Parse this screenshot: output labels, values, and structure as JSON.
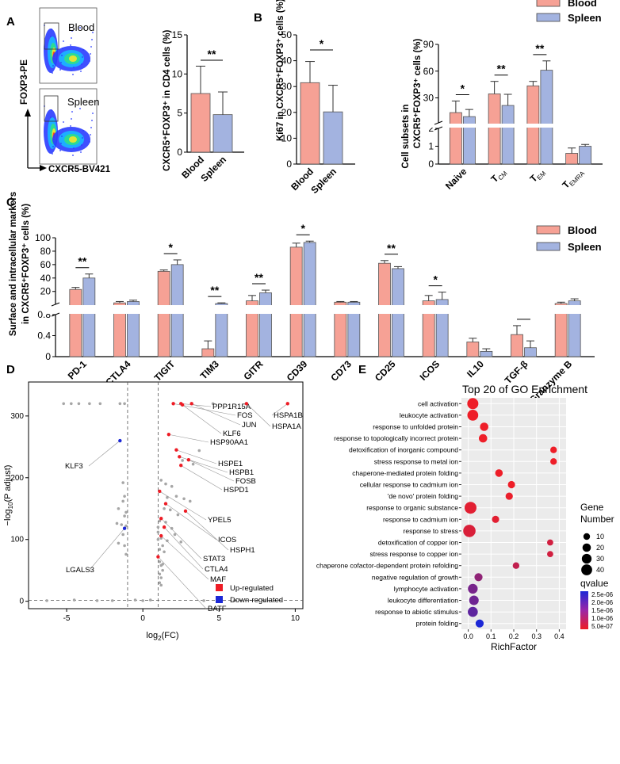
{
  "colors": {
    "blood": "#f6a195",
    "spleen": "#a3b3e0",
    "up": "#ee1c25",
    "down": "#1c28d6",
    "ns": "#a6a6a6"
  },
  "legend": {
    "blood": "Blood",
    "spleen": "Spleen"
  },
  "chart_data": [
    {
      "panel": "A",
      "type": "bar",
      "flow_labels": {
        "y": "FOXP3-PE",
        "x": "CXCR5-BV421",
        "top": "Blood",
        "bottom": "Spleen"
      },
      "categories": [
        "Blood",
        "Spleen"
      ],
      "values": [
        7.5,
        4.8
      ],
      "errors": [
        3.5,
        2.9
      ],
      "ylabel": "CXCR5⁺FOXP3⁺ in CD4 cells (%)",
      "ylim": [
        0,
        15
      ],
      "yticks": [
        "0",
        "5",
        "10",
        "15"
      ],
      "significance": "**"
    },
    {
      "panel": "B1",
      "type": "bar",
      "categories": [
        "Blood",
        "Spleen"
      ],
      "values": [
        31.5,
        20.2
      ],
      "errors": [
        8.2,
        10.3
      ],
      "ylabel": "Ki67 in CXCR5⁺FOXP3⁺ cells (%)",
      "ylim": [
        0,
        50
      ],
      "yticks": [
        "0",
        "10",
        "20",
        "30",
        "40",
        "50"
      ],
      "significance": "*"
    },
    {
      "panel": "B2",
      "type": "bar",
      "ylabel_line1": "Cell subsets in",
      "ylabel_line2": "CXCR5⁺FOXP3⁺ cells (%)",
      "categories": [
        "Naive",
        "T_CM",
        "T_EM",
        "T_EMRA"
      ],
      "category_labels": [
        {
          "main": "Naive",
          "sub": ""
        },
        {
          "main": "T",
          "sub": "CM"
        },
        {
          "main": "T",
          "sub": "EM"
        },
        {
          "main": "T",
          "sub": "EMRA"
        }
      ],
      "series": [
        {
          "name": "Blood",
          "values": [
            13.5,
            34.5,
            43.5,
            0.6
          ],
          "errors": [
            13.0,
            14.0,
            5.0,
            0.3
          ]
        },
        {
          "name": "Spleen",
          "values": [
            9.0,
            21.5,
            61.0,
            1.0
          ],
          "errors": [
            8.0,
            12.5,
            10.5,
            0.1
          ]
        }
      ],
      "axis_break": {
        "lower": [
          0,
          2
        ],
        "upper": [
          2,
          90
        ]
      },
      "yticks_lower": [
        "0",
        "1",
        "2"
      ],
      "yticks_upper": [
        "30",
        "60",
        "90"
      ],
      "significance": [
        "*",
        "**",
        "**",
        ""
      ]
    },
    {
      "panel": "C",
      "type": "bar",
      "ylabel_line1": "Surface and intracellular markers",
      "ylabel_line2": "in CXCR5⁺FOXP3⁺ cells (%)",
      "categories": [
        "PD-1",
        "CTLA4",
        "TIGIT",
        "TIM3",
        "GITR",
        "CD39",
        "CD73",
        "CD25",
        "ICOS",
        "IL10",
        "TGF-β",
        "Granzyme B"
      ],
      "series": [
        {
          "name": "Blood",
          "values": [
            23,
            3,
            50,
            0.15,
            6,
            86,
            4,
            62,
            6,
            0.28,
            0.42,
            2
          ],
          "errors": [
            3,
            2,
            2,
            0.15,
            8,
            6,
            1,
            4,
            8,
            0.07,
            0.17,
            2
          ]
        },
        {
          "name": "Spleen",
          "values": [
            40,
            5,
            60,
            2,
            18,
            93,
            4,
            54,
            8,
            0.1,
            0.17,
            6
          ],
          "errors": [
            6,
            2,
            7,
            1,
            4,
            2,
            1,
            3,
            11,
            0.05,
            0.13,
            3
          ]
        }
      ],
      "axis_break": {
        "lower": [
          0,
          0.8
        ],
        "upper": [
          0.8,
          100
        ]
      },
      "yticks_lower": [
        "0",
        "0.4",
        "0.8"
      ],
      "yticks_upper": [
        "20",
        "40",
        "60",
        "80",
        "100"
      ],
      "significance": [
        "**",
        "",
        "*",
        "**",
        "**",
        "*",
        "",
        "**",
        "*",
        "",
        "**",
        ""
      ]
    },
    {
      "panel": "D",
      "type": "scatter",
      "xlabel_main": "log",
      "xlabel_sub": "2",
      "xlabel_rest": "(FC)",
      "ylabel_main": "−log",
      "ylabel_sub": "10",
      "ylabel_rest": "(P adjust)",
      "xlim": [
        -7.5,
        10.5
      ],
      "ylim": [
        -12,
        355
      ],
      "xticks": [
        "-5",
        "0",
        "5",
        "10"
      ],
      "yticks": [
        "0",
        "100",
        "200",
        "300"
      ],
      "legend": [
        "Up-regulated",
        "Down-regulated"
      ],
      "labeled_genes": [
        {
          "gene": "PPP1R15A",
          "x": 2.5,
          "y": 320,
          "reg": "up"
        },
        {
          "gene": "FOS",
          "x": 2.0,
          "y": 320,
          "reg": "up"
        },
        {
          "gene": "JUN",
          "x": 3.2,
          "y": 320,
          "reg": "up"
        },
        {
          "gene": "KLF6",
          "x": 2.6,
          "y": 318,
          "reg": "up"
        },
        {
          "gene": "HSPA1B",
          "x": 9.5,
          "y": 320,
          "reg": "up"
        },
        {
          "gene": "HSPA1A",
          "x": 6.8,
          "y": 320,
          "reg": "up"
        },
        {
          "gene": "HSP90AA1",
          "x": 1.7,
          "y": 270,
          "reg": "up"
        },
        {
          "gene": "KLF3",
          "x": -1.5,
          "y": 260,
          "reg": "down"
        },
        {
          "gene": "HSPE1",
          "x": 2.2,
          "y": 245,
          "reg": "up"
        },
        {
          "gene": "HSPB1",
          "x": 2.4,
          "y": 234,
          "reg": "up"
        },
        {
          "gene": "FOSB",
          "x": 3.0,
          "y": 229,
          "reg": "up"
        },
        {
          "gene": "HSPD1",
          "x": 2.5,
          "y": 220,
          "reg": "up"
        },
        {
          "gene": "YPEL5",
          "x": 1.1,
          "y": 178,
          "reg": "up"
        },
        {
          "gene": "ICOS",
          "x": 1.5,
          "y": 158,
          "reg": "up"
        },
        {
          "gene": "HSPH1",
          "x": 2.8,
          "y": 146,
          "reg": "up"
        },
        {
          "gene": "STAT3",
          "x": 1.2,
          "y": 134,
          "reg": "up"
        },
        {
          "gene": "CTLA4",
          "x": 1.4,
          "y": 120,
          "reg": "up"
        },
        {
          "gene": "LGALS3",
          "x": -1.2,
          "y": 118,
          "reg": "down"
        },
        {
          "gene": "MAF",
          "x": 1.2,
          "y": 106,
          "reg": "up"
        },
        {
          "gene": "BATF",
          "x": 1.0,
          "y": 72,
          "reg": "up"
        }
      ],
      "other_points": [
        {
          "x": -5.2,
          "y": 320
        },
        {
          "x": -4.7,
          "y": 320
        },
        {
          "x": -4.2,
          "y": 320
        },
        {
          "x": -3.5,
          "y": 320
        },
        {
          "x": -2.8,
          "y": 320
        },
        {
          "x": -1.5,
          "y": 320
        },
        {
          "x": -1.2,
          "y": 320
        },
        {
          "x": 4.6,
          "y": 320
        },
        {
          "x": 3.7,
          "y": 244
        },
        {
          "x": 2.6,
          "y": 228
        },
        {
          "x": 3.3,
          "y": 222
        },
        {
          "x": -1.3,
          "y": 192
        },
        {
          "x": -1.2,
          "y": 170
        },
        {
          "x": -1.3,
          "y": 162
        },
        {
          "x": -1.6,
          "y": 150
        },
        {
          "x": -1.1,
          "y": 144
        },
        {
          "x": -1.2,
          "y": 138
        },
        {
          "x": -1.7,
          "y": 126
        },
        {
          "x": -1.4,
          "y": 124
        },
        {
          "x": -1.1,
          "y": 122
        },
        {
          "x": -1.3,
          "y": 108
        },
        {
          "x": -1.6,
          "y": 94
        },
        {
          "x": -1.2,
          "y": 90
        },
        {
          "x": -1.1,
          "y": 76
        },
        {
          "x": 1.2,
          "y": 196
        },
        {
          "x": 1.6,
          "y": 168
        },
        {
          "x": 1.9,
          "y": 186
        },
        {
          "x": 2.2,
          "y": 170
        },
        {
          "x": 2.7,
          "y": 166
        },
        {
          "x": 3.1,
          "y": 162
        },
        {
          "x": 1.4,
          "y": 150
        },
        {
          "x": 1.8,
          "y": 148
        },
        {
          "x": 2.3,
          "y": 140
        },
        {
          "x": 1.1,
          "y": 130
        },
        {
          "x": 1.5,
          "y": 128
        },
        {
          "x": 1.9,
          "y": 118
        },
        {
          "x": 1.2,
          "y": 102
        },
        {
          "x": 1.6,
          "y": 98
        },
        {
          "x": 1.3,
          "y": 90
        },
        {
          "x": 1.1,
          "y": 84
        },
        {
          "x": 1.4,
          "y": 80
        },
        {
          "x": 1.1,
          "y": 64
        },
        {
          "x": 1.2,
          "y": 58
        },
        {
          "x": 1.3,
          "y": 50
        },
        {
          "x": 1.1,
          "y": 44
        },
        {
          "x": 1.2,
          "y": 38
        },
        {
          "x": 1.1,
          "y": 30
        },
        {
          "x": 1.2,
          "y": 26
        },
        {
          "x": 2.1,
          "y": 108
        },
        {
          "x": 2.5,
          "y": 96
        },
        {
          "x": 1.0,
          "y": 112
        },
        {
          "x": 1.0,
          "y": 120
        },
        {
          "x": 1.0,
          "y": 100
        },
        {
          "x": 1.5,
          "y": 190
        },
        {
          "x": 1.3,
          "y": 60
        },
        {
          "x": -6.3,
          "y": 1
        },
        {
          "x": -4.5,
          "y": 2
        },
        {
          "x": -3.0,
          "y": 1
        },
        {
          "x": -2.0,
          "y": 1
        },
        {
          "x": 0.0,
          "y": 1
        },
        {
          "x": 4.0,
          "y": 1
        },
        {
          "x": 6.0,
          "y": 1
        },
        {
          "x": 8.0,
          "y": 1
        },
        {
          "x": -0.5,
          "y": 2
        },
        {
          "x": 0.5,
          "y": 2
        }
      ]
    },
    {
      "panel": "E",
      "type": "scatter",
      "title": "Top 20 of GO Enrichment",
      "xlabel": "RichFactor",
      "xlim": [
        -0.03,
        0.43
      ],
      "xticks": [
        "0.0",
        "0.1",
        "0.2",
        "0.3",
        "0.4"
      ],
      "size_legend_title": [
        "Gene",
        "Number"
      ],
      "size_legend_values": [
        "10",
        "20",
        "30",
        "40"
      ],
      "color_legend_title": "qvalue",
      "color_legend_ticks": [
        "2.5e-06",
        "2.0e-06",
        "1.5e-06",
        "1.0e-06",
        "5.0e-07"
      ],
      "terms": [
        {
          "term": "cell activation",
          "rich": 0.02,
          "count": 42,
          "q": 2e-08
        },
        {
          "term": "leukocyte activation",
          "rich": 0.02,
          "count": 40,
          "q": 2e-08
        },
        {
          "term": "response to unfolded protein",
          "rich": 0.07,
          "count": 20,
          "q": 2e-08
        },
        {
          "term": "response to topologically incorrect protein",
          "rich": 0.065,
          "count": 20,
          "q": 2e-08
        },
        {
          "term": "detoxification of inorganic compound",
          "rich": 0.375,
          "count": 10,
          "q": 2e-08
        },
        {
          "term": "stress response to metal ion",
          "rich": 0.375,
          "count": 10,
          "q": 2e-08
        },
        {
          "term": "chaperone-mediated protein folding",
          "rich": 0.135,
          "count": 15,
          "q": 5e-08
        },
        {
          "term": "cellular response to cadmium ion",
          "rich": 0.19,
          "count": 13,
          "q": 5e-08
        },
        {
          "term": "'de novo' protein folding",
          "rich": 0.18,
          "count": 13,
          "q": 1e-07
        },
        {
          "term": "response to organic substance",
          "rich": 0.01,
          "count": 50,
          "q": 2e-07
        },
        {
          "term": "response to cadmium ion",
          "rich": 0.12,
          "count": 13,
          "q": 2e-07
        },
        {
          "term": "response to stress",
          "rich": 0.005,
          "count": 55,
          "q": 3e-07
        },
        {
          "term": "detoxification of copper ion",
          "rich": 0.36,
          "count": 8,
          "q": 4e-07
        },
        {
          "term": "stress response to copper ion",
          "rich": 0.36,
          "count": 8,
          "q": 4e-07
        },
        {
          "term": "chaperone cofactor-dependent protein refolding",
          "rich": 0.21,
          "count": 10,
          "q": 6e-07
        },
        {
          "term": "negative regulation of growth",
          "rich": 0.045,
          "count": 18,
          "q": 1.2e-06
        },
        {
          "term": "lymphocyte activation",
          "rich": 0.02,
          "count": 30,
          "q": 1.5e-06
        },
        {
          "term": "leukocyte differentiation",
          "rich": 0.025,
          "count": 28,
          "q": 1.6e-06
        },
        {
          "term": "response to abiotic stimulus",
          "rich": 0.02,
          "count": 32,
          "q": 1.8e-06
        },
        {
          "term": "protein folding",
          "rich": 0.05,
          "count": 18,
          "q": 2.6e-06
        }
      ]
    }
  ]
}
